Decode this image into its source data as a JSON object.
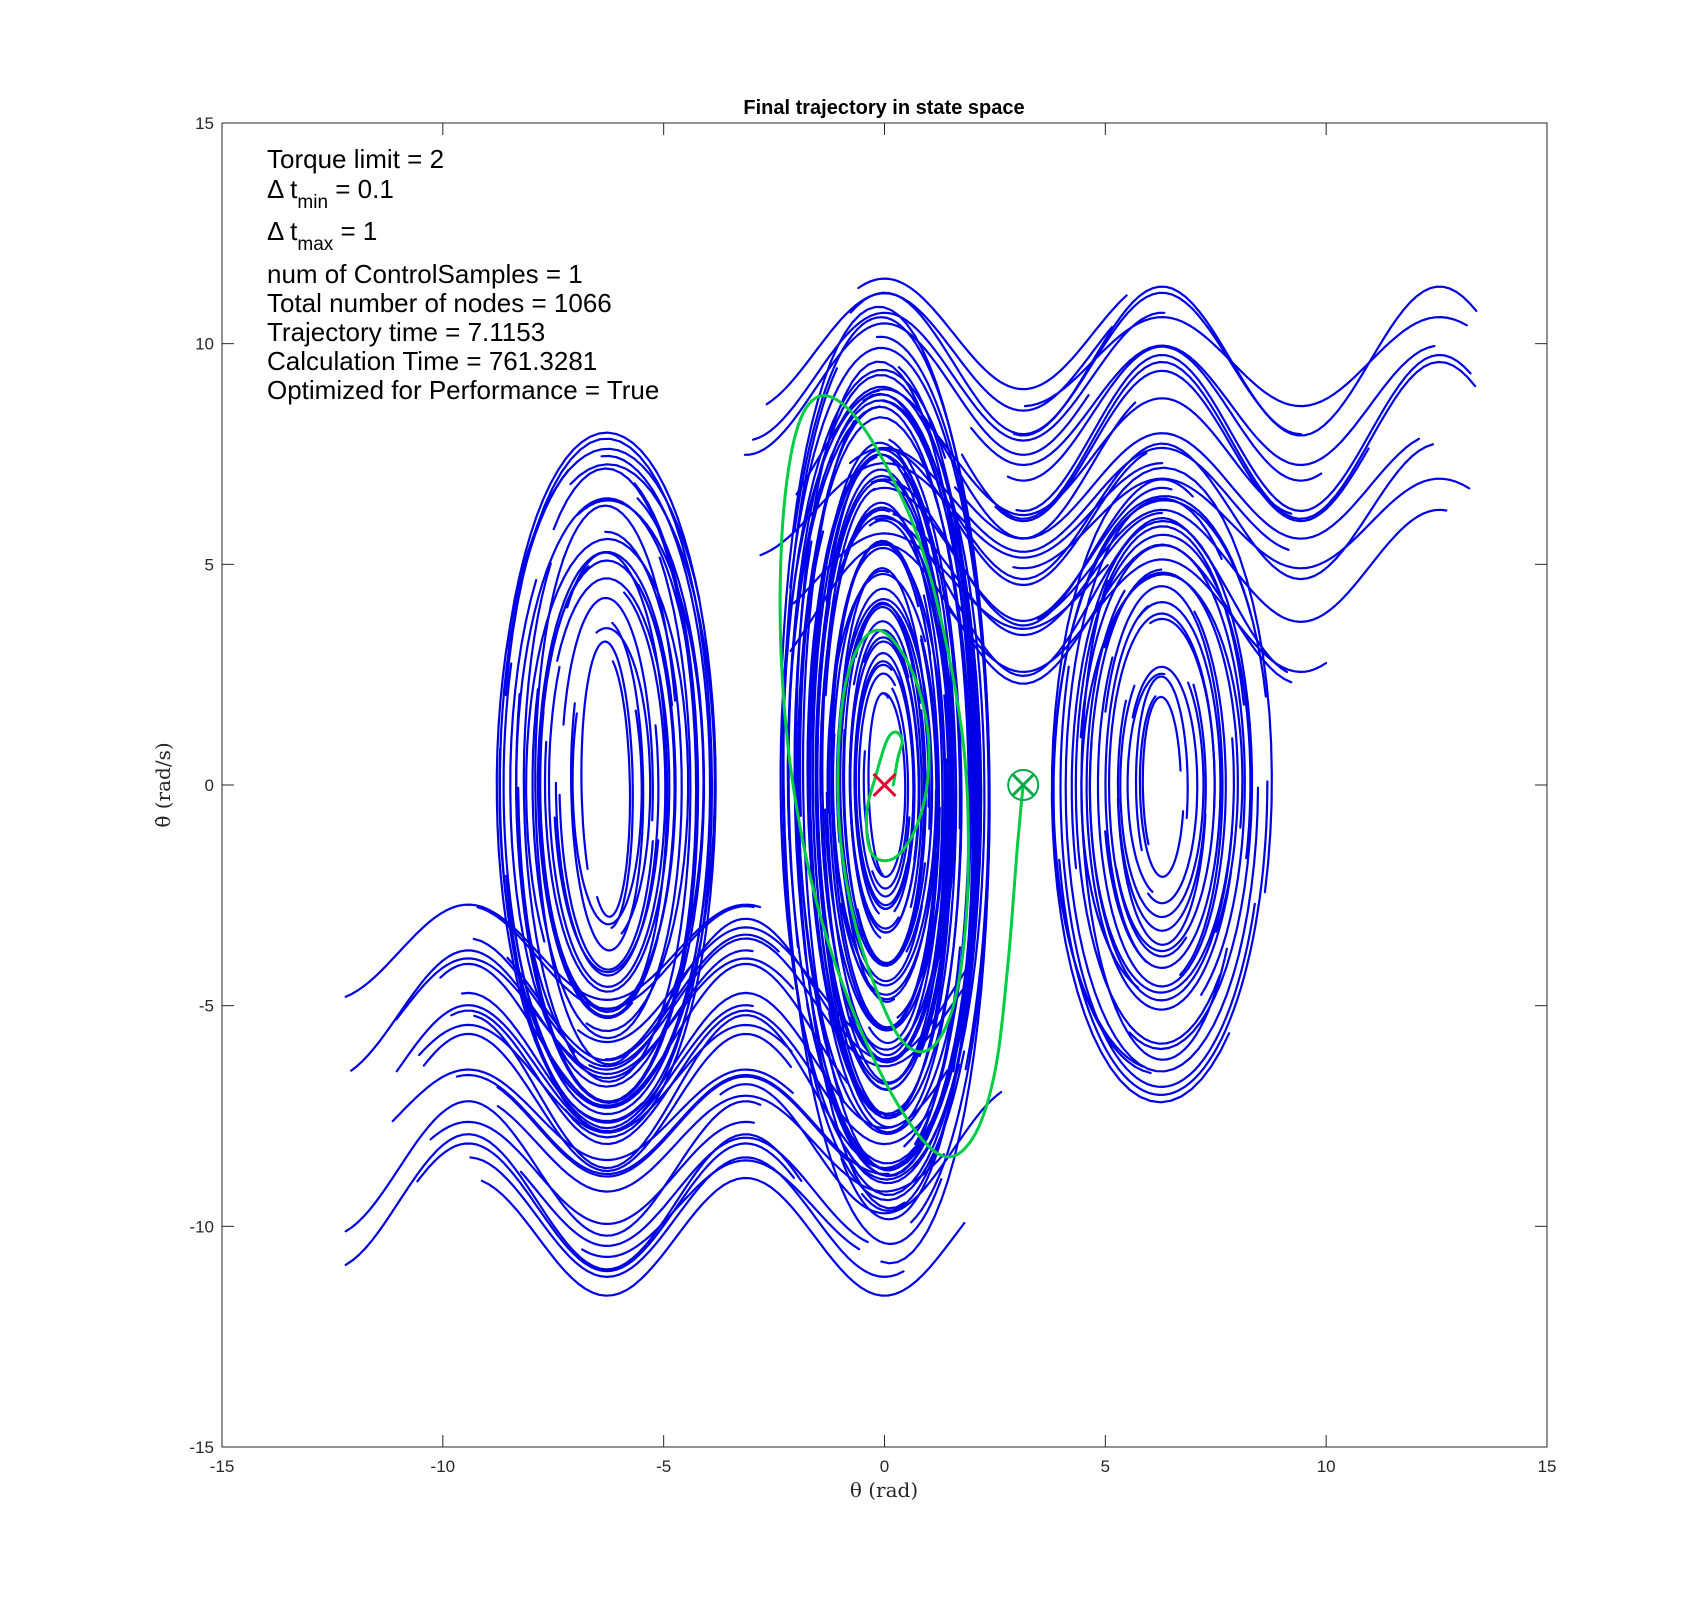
{
  "chart_data": {
    "type": "line",
    "title": "Final trajectory in state space",
    "xlabel": "θ (rad)",
    "ylabel": "θ̇ (rad/s)",
    "xlim": [
      -15,
      15
    ],
    "ylim": [
      -15,
      15
    ],
    "xticks": [
      "-15",
      "-10",
      "-5",
      "0",
      "5",
      "10",
      "15"
    ],
    "yticks": [
      "-15",
      "-10",
      "-5",
      "0",
      "5",
      "10",
      "15"
    ],
    "grid": false,
    "annotations": [
      {
        "text": "Torque limit = 2"
      },
      {
        "text": "Δ t",
        "sub": "min",
        "tail": " = 0.1"
      },
      {
        "text": "Δ t",
        "sub": "max",
        "tail": " = 1"
      },
      {
        "text": "num of ControlSamples = 1"
      },
      {
        "text": "Total number of nodes = 1066"
      },
      {
        "text": "Trajectory time = 7.1153"
      },
      {
        "text": "Calculation Time = 761.3281"
      },
      {
        "text": "Optimized for Performance = True"
      }
    ],
    "colors": {
      "tree": "#0000e6",
      "final_path": "#00cc44",
      "start": "#e6002e",
      "goal": "#00aa44"
    },
    "series": [
      {
        "role": "tree",
        "family": "center-band",
        "center_x": 0,
        "x_amplitude_range": [
          0.4,
          2.3
        ],
        "y_amplitude_range": [
          2.0,
          10.6
        ],
        "count": 70
      },
      {
        "role": "tree",
        "family": "left-band",
        "center_x": -6.28,
        "x_amplitude_range": [
          0.5,
          2.6
        ],
        "y_amplitude_range": [
          3.0,
          8.2
        ],
        "count": 32
      },
      {
        "role": "tree",
        "family": "right-band",
        "center_x": 6.28,
        "x_amplitude_range": [
          0.4,
          2.4
        ],
        "y_amplitude_range": [
          2.0,
          7.2
        ],
        "count": 30
      },
      {
        "role": "tree",
        "family": "rotating-upper",
        "x": [
          -3.2,
          3.5
        ],
        "y_mean_range": [
          3.5,
          10.0
        ],
        "amplitude_range": [
          1.0,
          1.8
        ],
        "x_end": 13.4,
        "count": 28
      },
      {
        "role": "tree",
        "family": "rotating-lower",
        "x": [
          -12.2,
          3.0
        ],
        "y_mean_range": [
          -10.0,
          -3.5
        ],
        "amplitude_range": [
          1.0,
          1.8
        ],
        "count": 28
      },
      {
        "name": "",
        "role": "final_path",
        "x": [
          0.2,
          0.3,
          0.4,
          0.25,
          0.05,
          -0.2,
          -0.4,
          -0.35,
          -0.1,
          0.3,
          0.7,
          0.95,
          1.0,
          0.8,
          0.4,
          -0.1,
          -0.55,
          -0.9,
          -1.05,
          -1.0,
          -0.7,
          -0.2,
          0.4,
          1.0,
          1.5,
          1.8,
          1.9,
          1.8,
          1.4,
          0.8,
          0.0,
          -0.8,
          -1.5,
          -2.0,
          -2.3,
          -2.35,
          -2.1,
          -1.5,
          -0.6,
          0.4,
          1.3,
          2.0,
          2.5,
          2.8,
          3.0,
          3.14
        ],
        "y": [
          0.0,
          0.6,
          1.0,
          1.2,
          1.0,
          0.2,
          -0.6,
          -1.4,
          -1.7,
          -1.6,
          -1.0,
          -0.1,
          1.0,
          2.1,
          3.0,
          3.5,
          3.2,
          2.2,
          0.6,
          -1.2,
          -3.0,
          -4.6,
          -5.8,
          -6.0,
          -5.2,
          -3.6,
          -1.5,
          0.8,
          3.2,
          5.5,
          7.3,
          8.5,
          8.8,
          8.0,
          6.0,
          3.2,
          0.2,
          -2.8,
          -5.4,
          -7.4,
          -8.4,
          -8.0,
          -6.5,
          -4.0,
          -1.5,
          0.0
        ]
      }
    ],
    "markers": [
      {
        "role": "start",
        "symbol": "x",
        "x": 0,
        "y": 0
      },
      {
        "role": "goal",
        "symbol": "x-circle",
        "x": 3.14,
        "y": 0
      }
    ]
  }
}
